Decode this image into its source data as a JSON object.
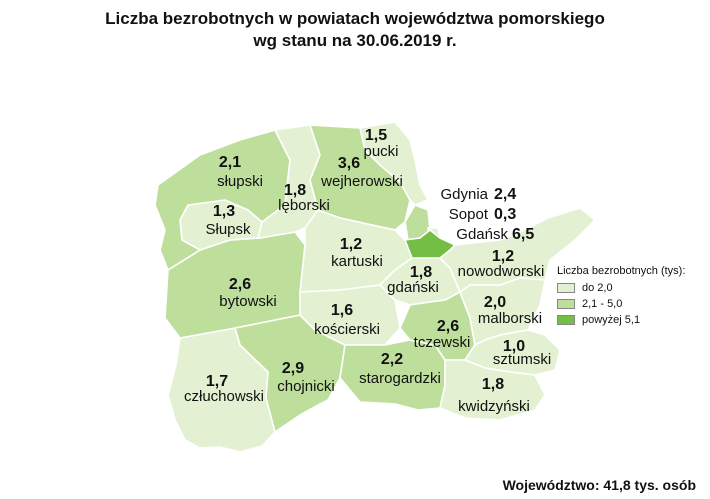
{
  "title_line1": "Liczba bezrobotnych w powiatach województwa pomorskiego",
  "title_line2": "wg stanu na 30.06.2019 r.",
  "colors": {
    "low": "#e3f1d2",
    "mid": "#bedf9c",
    "high": "#74be45"
  },
  "regions": {
    "pucki": {
      "name": "pucki",
      "value": "1,5",
      "class": "low"
    },
    "slupski": {
      "name": "słupski",
      "value": "2,1",
      "class": "mid"
    },
    "wejherowski": {
      "name": "wejherowski",
      "value": "3,6",
      "class": "mid"
    },
    "leborski": {
      "name": "lęborski",
      "value": "1,8",
      "class": "low"
    },
    "slupsk": {
      "name": "Słupsk",
      "value": "1,3",
      "class": "low"
    },
    "kartuski": {
      "name": "kartuski",
      "value": "1,2",
      "class": "low"
    },
    "gdanski": {
      "name": "gdański",
      "value": "1,8",
      "class": "low"
    },
    "nowodworski": {
      "name": "nowodworski",
      "value": "1,2",
      "class": "low"
    },
    "bytowski": {
      "name": "bytowski",
      "value": "2,6",
      "class": "mid"
    },
    "koscierski": {
      "name": "kościerski",
      "value": "1,6",
      "class": "low"
    },
    "malborski": {
      "name": "malborski",
      "value": "2,0",
      "class": "low"
    },
    "tczewski": {
      "name": "tczewski",
      "value": "2,6",
      "class": "mid"
    },
    "sztumski": {
      "name": "sztumski",
      "value": "1,0",
      "class": "low"
    },
    "czluchowski": {
      "name": "człuchowski",
      "value": "1,7",
      "class": "low"
    },
    "chojnicki": {
      "name": "chojnicki",
      "value": "2,9",
      "class": "mid"
    },
    "starogardzki": {
      "name": "starogardzki",
      "value": "2,2",
      "class": "mid"
    },
    "kwidzynski": {
      "name": "kwidzyński",
      "value": "1,8",
      "class": "low"
    }
  },
  "cities": {
    "gdynia": {
      "name": "Gdynia",
      "value": "2,4",
      "class": "mid"
    },
    "sopot": {
      "name": "Sopot",
      "value": "0,3",
      "class": "low"
    },
    "gdansk": {
      "name": "Gdańsk",
      "value": "6,5",
      "class": "high"
    }
  },
  "legend": {
    "title": "Liczba bezrobotnych (tys):",
    "items": [
      {
        "label": "do 2,0",
        "color": "#e3f1d2"
      },
      {
        "label": "2,1 - 5,0",
        "color": "#bedf9c"
      },
      {
        "label": "powyżej 5,1",
        "color": "#74be45"
      }
    ]
  },
  "footer": "Województwo: 41,8 tys. osób"
}
